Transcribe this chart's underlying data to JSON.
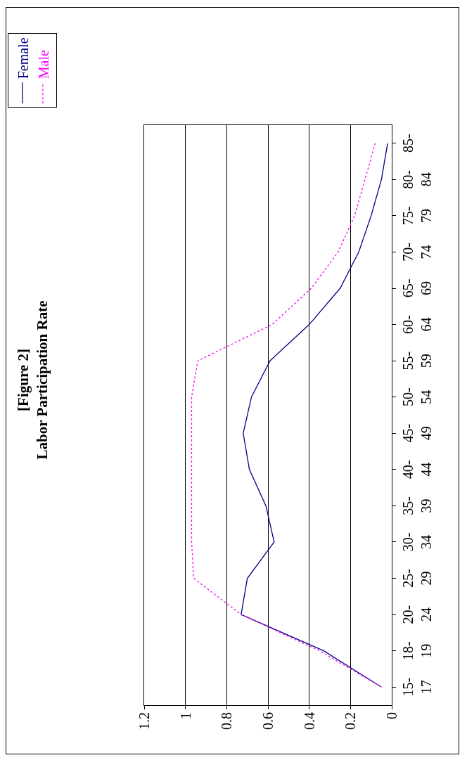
{
  "chart_data": {
    "type": "line",
    "title": "[Figure 2]\nLabor Participation Rate",
    "orientation": "horizontal",
    "categories": [
      "85-",
      "80- 84",
      "75- 79",
      "70- 74",
      "65- 69",
      "60- 64",
      "55- 59",
      "50- 54",
      "45- 49",
      "40- 44",
      "35- 39",
      "30- 34",
      "25- 29",
      "20- 24",
      "18- 19",
      "15- 17"
    ],
    "series": [
      {
        "name": "Female",
        "color": "#000080",
        "line_style": "solid",
        "values": [
          0.02,
          0.05,
          0.1,
          0.16,
          0.25,
          0.4,
          0.59,
          0.68,
          0.72,
          0.69,
          0.61,
          0.57,
          0.7,
          0.73,
          0.33,
          0.05
        ]
      },
      {
        "name": "Male",
        "color": "#ff00ff",
        "line_style": "dotted",
        "values": [
          0.08,
          0.13,
          0.18,
          0.26,
          0.39,
          0.58,
          0.94,
          0.97,
          0.97,
          0.97,
          0.97,
          0.97,
          0.96,
          0.73,
          0.35,
          0.05
        ]
      }
    ],
    "xlim": [
      1.2,
      0
    ],
    "xticks": [
      1.2,
      1,
      0.8,
      0.6,
      0.4,
      0.2,
      0
    ],
    "grid": "x",
    "legend": "top",
    "marker": "none"
  }
}
